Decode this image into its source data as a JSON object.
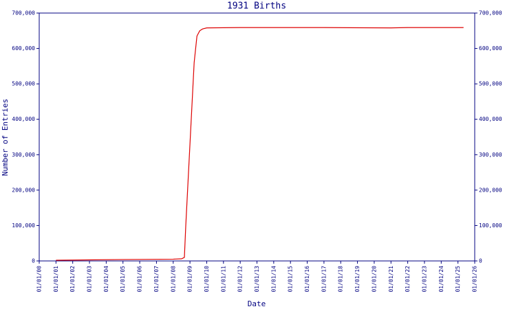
{
  "chart_data": {
    "type": "line",
    "title": "1931 Births",
    "x_label": "Date",
    "y_label": "Number of Entries",
    "x": [
      "01/01/01",
      "01/01/05",
      "01/01/08",
      "07/01/08",
      "09/01/08",
      "10/01/08",
      "01/01/09",
      "04/01/09",
      "06/01/09",
      "08/01/09",
      "10/01/09",
      "01/01/10",
      "01/01/12",
      "01/01/17",
      "01/01/21",
      "01/01/22",
      "05/01/25"
    ],
    "series": [
      {
        "name": "1931 Births",
        "color": "#dd0000",
        "values": [
          2000,
          4000,
          5000,
          6000,
          10000,
          100000,
          330000,
          560000,
          635000,
          650000,
          655000,
          658000,
          659000,
          659000,
          658000,
          659000,
          659000
        ]
      }
    ],
    "xlim": [
      "01/01/00",
      "01/01/26"
    ],
    "xticks": [
      "01/01/00",
      "01/01/01",
      "01/01/02",
      "01/01/03",
      "01/01/04",
      "01/01/05",
      "01/01/06",
      "01/01/07",
      "01/01/08",
      "01/01/09",
      "01/01/10",
      "01/01/11",
      "01/01/12",
      "01/01/13",
      "01/01/14",
      "01/01/15",
      "01/01/16",
      "01/01/17",
      "01/01/18",
      "01/01/19",
      "01/01/20",
      "01/01/21",
      "01/01/22",
      "01/01/23",
      "01/01/24",
      "01/01/25",
      "01/01/26"
    ],
    "ylim": [
      0,
      700000
    ],
    "yticks": [
      0,
      {
        "value": 100000,
        "label": "100,000"
      },
      {
        "value": 200000,
        "label": "200,000"
      },
      {
        "value": 300000,
        "label": "300,000"
      },
      {
        "value": 400000,
        "label": "400,000"
      },
      {
        "value": 500000,
        "label": "500,000"
      },
      {
        "value": 600000,
        "label": "600,000"
      },
      {
        "value": 700000,
        "label": "700,000"
      }
    ],
    "axis_color": "#000080"
  }
}
